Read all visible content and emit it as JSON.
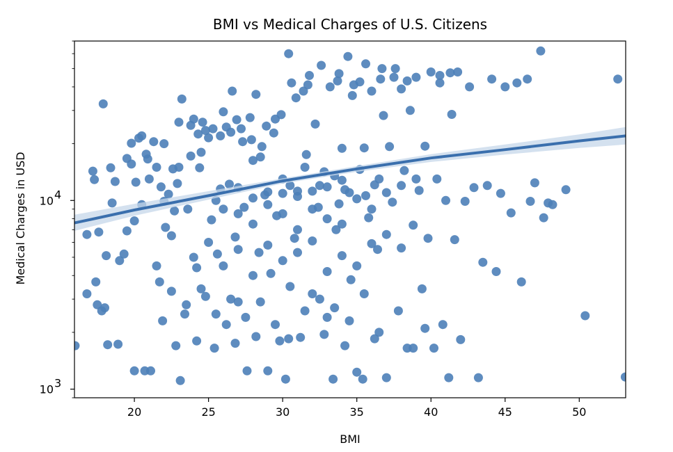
{
  "chart_data": {
    "type": "scatter",
    "title": "BMI vs Medical Charges of U.S. Citizens",
    "xlabel": "BMI",
    "ylabel": "Medical Charges in USD",
    "xlim": [
      15.96,
      53.13
    ],
    "ylim": [
      900,
      70000
    ],
    "y_scale": "log",
    "grid": false,
    "legend": "none",
    "x_ticks": [
      20,
      25,
      30,
      35,
      40,
      45,
      50
    ],
    "y_ticks": [
      {
        "value": 1000,
        "base": "10",
        "exp": "3"
      },
      {
        "value": 10000,
        "base": "10",
        "exp": "4"
      }
    ],
    "colors": {
      "point": "#4c80b8",
      "fit": "#3a6fad",
      "band": "#c5d7ea"
    },
    "fit_line": {
      "x": [
        15.96,
        20,
        25,
        30,
        35,
        40,
        45,
        50,
        53.13
      ],
      "y": [
        7600,
        8900,
        10600,
        12700,
        14700,
        16800,
        18600,
        20700,
        22000
      ],
      "band_lower": [
        6900,
        8300,
        10100,
        12300,
        14200,
        16000,
        17500,
        19000,
        19800
      ],
      "band_upper": [
        8400,
        9600,
        11200,
        13100,
        15200,
        17600,
        19800,
        22400,
        24500
      ]
    },
    "points": [
      [
        16.0,
        1700
      ],
      [
        16.8,
        6600
      ],
      [
        16.8,
        3200
      ],
      [
        17.2,
        14300
      ],
      [
        17.3,
        12900
      ],
      [
        17.4,
        3700
      ],
      [
        17.5,
        2800
      ],
      [
        17.6,
        6800
      ],
      [
        17.8,
        2600
      ],
      [
        17.9,
        32500
      ],
      [
        18.0,
        2700
      ],
      [
        18.1,
        5100
      ],
      [
        18.2,
        1720
      ],
      [
        18.4,
        14900
      ],
      [
        18.5,
        9700
      ],
      [
        18.7,
        12600
      ],
      [
        18.9,
        1730
      ],
      [
        19.0,
        4800
      ],
      [
        19.3,
        5200
      ],
      [
        19.5,
        16700
      ],
      [
        19.8,
        15600
      ],
      [
        20.0,
        1250
      ],
      [
        20.1,
        12500
      ],
      [
        20.3,
        21400
      ],
      [
        20.5,
        22000
      ],
      [
        20.7,
        1250
      ],
      [
        20.9,
        16600
      ],
      [
        21.1,
        1250
      ],
      [
        21.3,
        20500
      ],
      [
        21.5,
        4500
      ],
      [
        21.7,
        3700
      ],
      [
        21.9,
        2300
      ],
      [
        22.1,
        7200
      ],
      [
        22.3,
        10800
      ],
      [
        22.5,
        6500
      ],
      [
        22.7,
        8800
      ],
      [
        22.9,
        12300
      ],
      [
        23.1,
        1110
      ],
      [
        23.2,
        34500
      ],
      [
        23.4,
        2500
      ],
      [
        23.6,
        9000
      ],
      [
        23.8,
        17200
      ],
      [
        24.0,
        27000
      ],
      [
        24.2,
        4400
      ],
      [
        24.4,
        14900
      ],
      [
        24.6,
        26000
      ],
      [
        24.8,
        3100
      ],
      [
        25.0,
        21500
      ],
      [
        25.2,
        7900
      ],
      [
        25.4,
        1650
      ],
      [
        25.6,
        5200
      ],
      [
        25.8,
        11500
      ],
      [
        26.0,
        29500
      ],
      [
        26.2,
        2200
      ],
      [
        26.4,
        12200
      ],
      [
        26.6,
        38000
      ],
      [
        26.8,
        6400
      ],
      [
        27.0,
        2900
      ],
      [
        27.2,
        24000
      ],
      [
        27.4,
        9200
      ],
      [
        27.6,
        1250
      ],
      [
        27.8,
        27500
      ],
      [
        28.0,
        16300
      ],
      [
        28.2,
        36500
      ],
      [
        28.4,
        5300
      ],
      [
        28.6,
        19300
      ],
      [
        28.8,
        10700
      ],
      [
        29.0,
        1250
      ],
      [
        29.2,
        4100
      ],
      [
        29.4,
        22800
      ],
      [
        29.6,
        8300
      ],
      [
        29.8,
        1800
      ],
      [
        30.0,
        13000
      ],
      [
        30.2,
        1130
      ],
      [
        30.4,
        60000
      ],
      [
        30.6,
        42000
      ],
      [
        30.8,
        6300
      ],
      [
        31.0,
        11200
      ],
      [
        31.2,
        1880
      ],
      [
        31.4,
        38000
      ],
      [
        31.6,
        17500
      ],
      [
        31.8,
        46000
      ],
      [
        32.0,
        3200
      ],
      [
        32.2,
        25400
      ],
      [
        32.4,
        9200
      ],
      [
        32.6,
        52000
      ],
      [
        32.8,
        14200
      ],
      [
        33.0,
        2400
      ],
      [
        33.2,
        40000
      ],
      [
        33.4,
        1130
      ],
      [
        33.6,
        7000
      ],
      [
        33.8,
        47000
      ],
      [
        34.0,
        18900
      ],
      [
        34.2,
        11400
      ],
      [
        34.4,
        58000
      ],
      [
        34.6,
        3800
      ],
      [
        34.8,
        41000
      ],
      [
        35.0,
        1230
      ],
      [
        35.2,
        14600
      ],
      [
        35.4,
        1130
      ],
      [
        35.6,
        53000
      ],
      [
        35.8,
        8100
      ],
      [
        36.0,
        38000
      ],
      [
        36.2,
        12100
      ],
      [
        36.4,
        5500
      ],
      [
        36.6,
        44000
      ],
      [
        36.8,
        28200
      ],
      [
        37.0,
        1150
      ],
      [
        37.2,
        19300
      ],
      [
        37.4,
        9800
      ],
      [
        37.6,
        50000
      ],
      [
        37.8,
        2600
      ],
      [
        38.0,
        39000
      ],
      [
        38.2,
        14400
      ],
      [
        38.4,
        1650
      ],
      [
        38.6,
        30000
      ],
      [
        38.8,
        7400
      ],
      [
        39.0,
        45000
      ],
      [
        39.2,
        11300
      ],
      [
        39.4,
        3400
      ],
      [
        39.6,
        19400
      ],
      [
        39.8,
        6300
      ],
      [
        40.0,
        48000
      ],
      [
        40.2,
        1650
      ],
      [
        40.4,
        13000
      ],
      [
        40.6,
        42000
      ],
      [
        40.8,
        2200
      ],
      [
        41.0,
        10000
      ],
      [
        41.2,
        1150
      ],
      [
        41.4,
        28600
      ],
      [
        41.6,
        6200
      ],
      [
        41.8,
        48000
      ],
      [
        42.0,
        1830
      ],
      [
        42.3,
        9900
      ],
      [
        42.6,
        40000
      ],
      [
        42.9,
        11700
      ],
      [
        43.2,
        1150
      ],
      [
        43.5,
        4700
      ],
      [
        43.8,
        12000
      ],
      [
        44.1,
        44000
      ],
      [
        44.4,
        4200
      ],
      [
        44.7,
        10900
      ],
      [
        45.0,
        40000
      ],
      [
        45.4,
        8600
      ],
      [
        45.8,
        42000
      ],
      [
        46.1,
        3700
      ],
      [
        46.5,
        44000
      ],
      [
        46.7,
        9900
      ],
      [
        47.0,
        12400
      ],
      [
        47.4,
        62000
      ],
      [
        47.6,
        8100
      ],
      [
        47.9,
        9700
      ],
      [
        48.2,
        9500
      ],
      [
        49.1,
        11400
      ],
      [
        50.4,
        2450
      ],
      [
        52.6,
        44000
      ],
      [
        53.1,
        1160
      ],
      [
        22.0,
        20000
      ],
      [
        23.0,
        15000
      ],
      [
        24.5,
        18000
      ],
      [
        25.3,
        24000
      ],
      [
        26.5,
        23000
      ],
      [
        27.3,
        20500
      ],
      [
        28.5,
        17000
      ],
      [
        29.5,
        27000
      ],
      [
        30.5,
        12000
      ],
      [
        31.5,
        15000
      ],
      [
        32.5,
        12000
      ],
      [
        33.5,
        13500
      ],
      [
        34.5,
        11000
      ],
      [
        35.5,
        19000
      ],
      [
        36.5,
        13000
      ],
      [
        25.5,
        10000
      ],
      [
        26.0,
        9000
      ],
      [
        27.0,
        8500
      ],
      [
        28.0,
        7500
      ],
      [
        29.0,
        9500
      ],
      [
        30.0,
        8500
      ],
      [
        31.0,
        7000
      ],
      [
        32.0,
        9000
      ],
      [
        33.0,
        8000
      ],
      [
        34.0,
        7500
      ],
      [
        35.0,
        10200
      ],
      [
        36.0,
        9000
      ],
      [
        37.0,
        11000
      ],
      [
        38.0,
        12000
      ],
      [
        39.0,
        13000
      ],
      [
        24.0,
        5000
      ],
      [
        25.0,
        6000
      ],
      [
        26.0,
        4500
      ],
      [
        27.0,
        5500
      ],
      [
        28.0,
        4000
      ],
      [
        29.0,
        5800
      ],
      [
        30.0,
        4800
      ],
      [
        31.0,
        5300
      ],
      [
        32.0,
        6100
      ],
      [
        33.0,
        4200
      ],
      [
        34.0,
        5100
      ],
      [
        35.0,
        4500
      ],
      [
        36.0,
        5900
      ],
      [
        37.0,
        6600
      ],
      [
        38.0,
        5600
      ],
      [
        22.5,
        3300
      ],
      [
        23.5,
        2800
      ],
      [
        24.5,
        3400
      ],
      [
        25.5,
        2500
      ],
      [
        26.5,
        3000
      ],
      [
        27.5,
        2400
      ],
      [
        28.5,
        2900
      ],
      [
        29.5,
        2200
      ],
      [
        30.5,
        3500
      ],
      [
        31.5,
        2600
      ],
      [
        32.5,
        3000
      ],
      [
        33.5,
        2700
      ],
      [
        34.5,
        2300
      ],
      [
        35.5,
        3200
      ],
      [
        36.5,
        2000
      ],
      [
        24.2,
        1800
      ],
      [
        26.8,
        1750
      ],
      [
        28.2,
        1900
      ],
      [
        30.4,
        1850
      ],
      [
        32.8,
        1950
      ],
      [
        34.2,
        1700
      ],
      [
        36.2,
        1850
      ],
      [
        38.8,
        1650
      ],
      [
        22.8,
        1700
      ],
      [
        39.6,
        2100
      ],
      [
        37.5,
        45000
      ],
      [
        36.7,
        50000
      ],
      [
        34.7,
        36000
      ],
      [
        33.7,
        43000
      ],
      [
        31.7,
        41000
      ],
      [
        30.9,
        35000
      ],
      [
        35.2,
        42500
      ],
      [
        38.4,
        43000
      ],
      [
        40.6,
        46000
      ],
      [
        41.3,
        47500
      ],
      [
        23.8,
        25000
      ],
      [
        24.8,
        23500
      ],
      [
        25.8,
        22000
      ],
      [
        26.9,
        26800
      ],
      [
        27.9,
        21000
      ],
      [
        28.9,
        24800
      ],
      [
        29.9,
        28500
      ],
      [
        23.0,
        26000
      ],
      [
        24.3,
        22500
      ],
      [
        26.2,
        24500
      ],
      [
        31.0,
        10500
      ],
      [
        32.0,
        11200
      ],
      [
        33.0,
        11800
      ],
      [
        34.0,
        12800
      ],
      [
        29.0,
        11100
      ],
      [
        28.0,
        10300
      ],
      [
        27.0,
        11700
      ],
      [
        30.0,
        10900
      ],
      [
        33.8,
        9600
      ],
      [
        35.6,
        10600
      ],
      [
        20.5,
        9500
      ],
      [
        21.0,
        13000
      ],
      [
        21.5,
        15000
      ],
      [
        22.0,
        9900
      ],
      [
        20.0,
        7800
      ],
      [
        19.5,
        6900
      ],
      [
        21.8,
        11800
      ],
      [
        22.6,
        14700
      ],
      [
        20.8,
        17600
      ],
      [
        19.8,
        20100
      ]
    ]
  }
}
